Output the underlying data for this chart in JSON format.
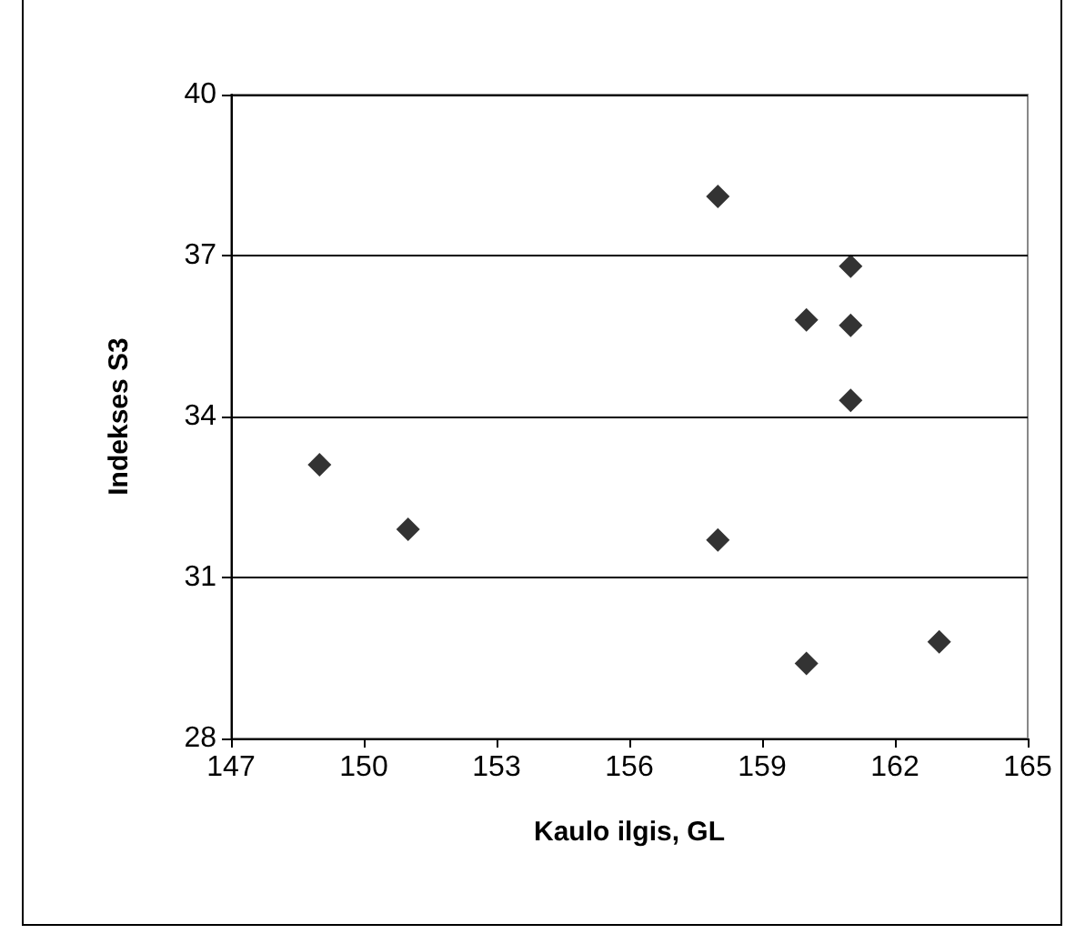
{
  "chart_data": {
    "type": "scatter",
    "xlabel": "Kaulo ilgis, GL",
    "ylabel": "Indekses S3",
    "x": [
      149,
      151,
      158,
      158,
      160,
      160,
      161,
      161,
      161,
      163
    ],
    "series": [
      {
        "color": "#000000",
        "values": [
          33.1,
          31.9,
          38.1,
          31.7,
          35.8,
          29.4,
          36.8,
          35.7,
          34.3,
          29.8
        ]
      }
    ],
    "xlim": [
      147,
      165
    ],
    "xticks": [
      147,
      150,
      153,
      156,
      159,
      162,
      165
    ],
    "ylim": [
      28,
      40
    ],
    "yticks": [
      28,
      31,
      34,
      37,
      40
    ],
    "grid": "y",
    "marker": "diamond",
    "legend": false
  }
}
